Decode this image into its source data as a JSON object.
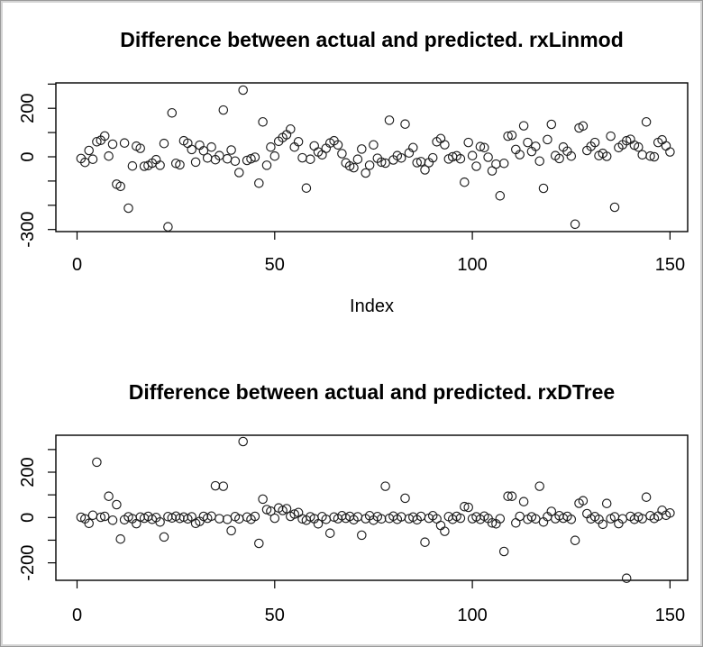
{
  "page": {
    "background": "#ffffff",
    "frame_border_color": "#c7c7c7",
    "text_color": "#000000",
    "marker_color": "#1c1c1c"
  },
  "chart_data": [
    {
      "type": "scatter",
      "title": "Difference between actual and predicted. rxLinmod",
      "xlabel": "Index",
      "ylabel": "",
      "marker": "open-circle",
      "grid": false,
      "x_mode": "sequential-index",
      "x_start": 1,
      "n_points": 150,
      "xlim": [
        -5,
        156
      ],
      "ylim": [
        -309,
        305
      ],
      "x_ticks": [
        0,
        50,
        100,
        150
      ],
      "y_ticks": [
        -300,
        -200,
        -100,
        0,
        100,
        200,
        300
      ],
      "y_tick_labels_shown": [
        "-300",
        "0",
        "200"
      ],
      "values": [
        -7,
        -23,
        26,
        -10,
        62,
        68,
        86,
        3,
        52,
        -113,
        -122,
        57,
        -212,
        -38,
        44,
        35,
        -39,
        -36,
        -26,
        -12,
        -35,
        55,
        -289,
        181,
        -27,
        -33,
        66,
        56,
        30,
        -22,
        48,
        25,
        -5,
        40,
        -12,
        5,
        193,
        -8,
        28,
        -18,
        -65,
        275,
        -15,
        -8,
        -2,
        -109,
        144,
        -35,
        40,
        3,
        64,
        79,
        91,
        114,
        40,
        62,
        -4,
        -129,
        -10,
        45,
        20,
        8,
        35,
        57,
        66,
        49,
        13,
        -25,
        -38,
        -45,
        -10,
        32,
        -67,
        -35,
        49,
        -6,
        -22,
        -26,
        151,
        -13,
        5,
        -5,
        135,
        16,
        38,
        -24,
        -20,
        -54,
        -24,
        -4,
        62,
        75,
        50,
        -9,
        0,
        4,
        -8,
        -105,
        59,
        5,
        -39,
        42,
        38,
        -2,
        -58,
        -30,
        -161,
        -27,
        85,
        89,
        30,
        9,
        128,
        59,
        22,
        43,
        -18,
        -130,
        71,
        134,
        5,
        -7,
        40,
        23,
        3,
        -278,
        119,
        127,
        26,
        43,
        59,
        5,
        14,
        2,
        85,
        -208,
        38,
        50,
        66,
        72,
        48,
        40,
        8,
        144,
        3,
        0,
        59,
        70,
        45,
        20
      ]
    },
    {
      "type": "scatter",
      "title": "Difference between actual and predicted. rxDTree",
      "xlabel": "",
      "ylabel": "",
      "marker": "open-circle",
      "grid": false,
      "x_mode": "sequential-index",
      "x_start": 1,
      "n_points": 150,
      "xlim": [
        -5,
        156
      ],
      "ylim": [
        -277,
        363
      ],
      "x_ticks": [
        0,
        50,
        100,
        150
      ],
      "y_ticks": [
        -200,
        -100,
        0,
        100,
        200,
        300
      ],
      "y_tick_labels_shown": [
        "-200",
        "0",
        "200"
      ],
      "values": [
        1,
        -6,
        -26,
        10,
        244,
        1,
        5,
        94,
        -12,
        57,
        -95,
        -10,
        3,
        -5,
        -27,
        2,
        -3,
        5,
        -8,
        0,
        -20,
        -86,
        4,
        -2,
        6,
        -4,
        2,
        -6,
        3,
        -26,
        -17,
        5,
        -3,
        6,
        140,
        -5,
        138,
        -8,
        -58,
        4,
        -6,
        335,
        2,
        -8,
        5,
        -114,
        81,
        35,
        28,
        -3,
        42,
        31,
        39,
        5,
        15,
        22,
        -6,
        -12,
        3,
        -5,
        -28,
        4,
        -8,
        -69,
        2,
        -5,
        8,
        -3,
        5,
        -10,
        3,
        -78,
        -5,
        8,
        -12,
        4,
        -6,
        138,
        -4,
        6,
        -8,
        3,
        85,
        -5,
        2,
        -10,
        5,
        -109,
        -3,
        8,
        -6,
        -35,
        -61,
        4,
        -8,
        5,
        -3,
        48,
        45,
        -5,
        3,
        -8,
        6,
        -4,
        -24,
        -28,
        -5,
        -150,
        94,
        94,
        -24,
        5,
        70,
        -8,
        3,
        -6,
        138,
        -20,
        4,
        27,
        -5,
        8,
        -3,
        5,
        -8,
        -101,
        63,
        74,
        17,
        -6,
        4,
        -8,
        -30,
        62,
        -5,
        3,
        -27,
        -6,
        -268,
        5,
        -8,
        3,
        -5,
        90,
        8,
        -4,
        6,
        32,
        10,
        20
      ]
    }
  ]
}
